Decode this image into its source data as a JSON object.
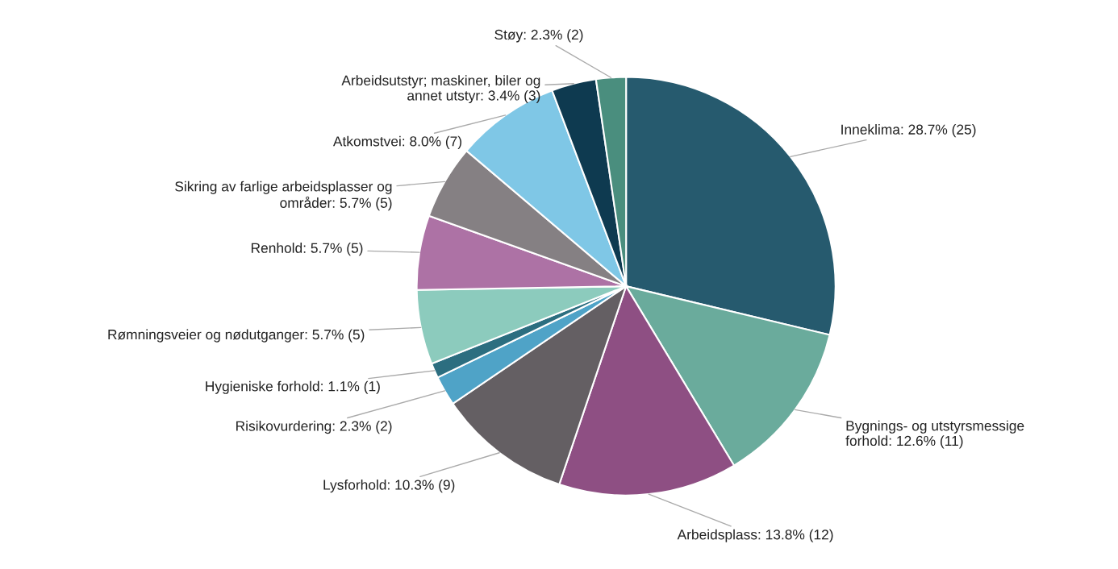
{
  "chart_data": {
    "type": "pie",
    "categories": [
      "Inneklima",
      "Bygnings- og utstyrsmessige\nforhold",
      "Arbeidsplass",
      "Lysforhold",
      "Risikovurdering",
      "Hygieniske forhold",
      "Rømningsveier og nødutganger",
      "Renhold",
      "Sikring av farlige arbeidsplasser og\nområder",
      "Atkomstvei",
      "Arbeidsutstyr; maskiner, biler og\nannet utstyr",
      "Støy"
    ],
    "values": [
      25,
      11,
      12,
      9,
      2,
      1,
      5,
      5,
      5,
      7,
      3,
      2
    ],
    "value_labels": [
      "28.7% (25)",
      "12.6% (11)",
      "13.8% (12)",
      "10.3% (9)",
      "2.3% (2)",
      "1.1% (1)",
      "5.7% (5)",
      "5.7% (5)",
      "5.7% (5)",
      "8.0% (7)",
      "3.4% (3)",
      "2.3% (2)"
    ],
    "colors": [
      "#265a6e",
      "#6aab9c",
      "#8e4f83",
      "#645f63",
      "#4fa3c7",
      "#2c6e80",
      "#8ccbbd",
      "#ad72a5",
      "#858083",
      "#7fc7e6",
      "#0e3a50",
      "#4a8e7e"
    ]
  }
}
